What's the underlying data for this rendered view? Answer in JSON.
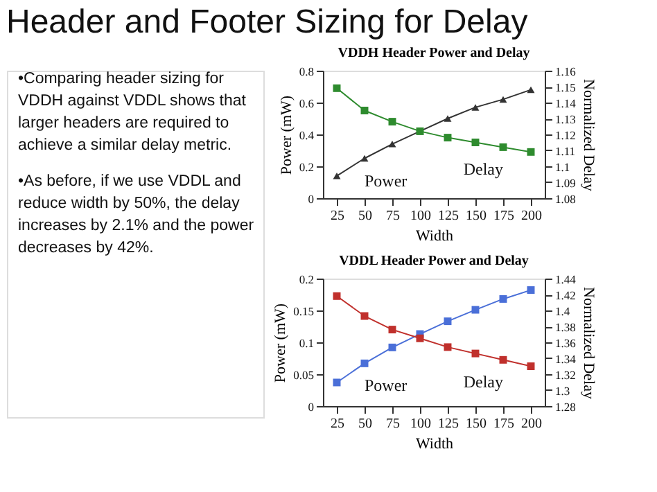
{
  "chart_data": [
    {
      "type": "other",
      "title": "Header and Footer Sizing for Delay",
      "annotations": [
        "•Comparing header sizing for VDDH against VDDL shows that larger headers are required to achieve a similar delay metric.",
        "•As before, if we use VDDL and reduce width by 50%, the delay increases by 2.1% and the power decreases by 42%."
      ]
    },
    {
      "type": "line",
      "title": "VDDH Header Power and Delay",
      "xlabel": "Width",
      "ylabel": "Power (mW)",
      "y2label": "Normalized Delay",
      "categories": [
        "25",
        "50",
        "75",
        "100",
        "125",
        "150",
        "175",
        "200"
      ],
      "series": [
        {
          "name": "Power",
          "color": "#333333",
          "marker": "triangle",
          "values": [
            0.14,
            0.25,
            0.34,
            0.42,
            0.5,
            0.57,
            0.62,
            0.68
          ]
        },
        {
          "name": "Delay",
          "color": "#2e8b2e",
          "marker": "square",
          "axis": "y2",
          "values": [
            1.149,
            1.135,
            1.128,
            1.122,
            1.118,
            1.115,
            1.112,
            1.109
          ]
        }
      ],
      "ylim": [
        0,
        0.8
      ],
      "yticks": [
        0,
        0.2,
        0.4,
        0.6,
        0.8
      ],
      "y2lim": [
        1.08,
        1.16
      ],
      "y2ticks": [
        1.08,
        1.09,
        1.1,
        1.11,
        1.12,
        1.13,
        1.14,
        1.15,
        1.16
      ]
    },
    {
      "type": "line",
      "title": "VDDL Header Power and Delay",
      "xlabel": "Width",
      "ylabel": "Power (mW)",
      "y2label": "Normalized Delay",
      "categories": [
        "25",
        "50",
        "75",
        "100",
        "125",
        "150",
        "175",
        "200"
      ],
      "series": [
        {
          "name": "Power",
          "color": "#4a6fd8",
          "marker": "square",
          "values": [
            0.037,
            0.067,
            0.092,
            0.113,
            0.133,
            0.151,
            0.168,
            0.182
          ]
        },
        {
          "name": "Delay",
          "color": "#c0302c",
          "marker": "square",
          "axis": "y2",
          "values": [
            1.418,
            1.393,
            1.376,
            1.365,
            1.354,
            1.346,
            1.338,
            1.33
          ]
        }
      ],
      "ylim": [
        0,
        0.2
      ],
      "yticks": [
        0,
        0.05,
        0.1,
        0.15,
        0.2
      ],
      "y2lim": [
        1.28,
        1.44
      ],
      "y2ticks": [
        1.28,
        1.3,
        1.32,
        1.34,
        1.36,
        1.38,
        1.4,
        1.42,
        1.44
      ]
    }
  ]
}
